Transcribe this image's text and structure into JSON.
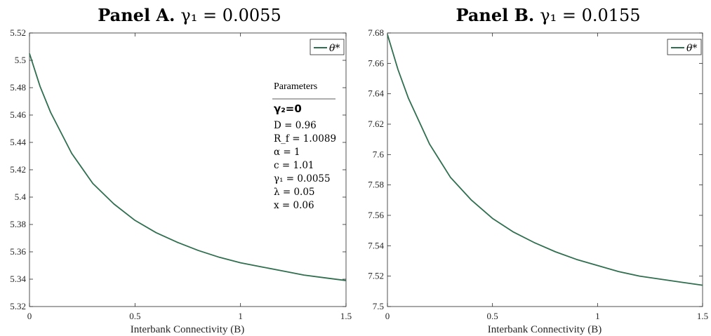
{
  "colors": {
    "line": "#2f6f4f",
    "axis": "#262626"
  },
  "chart_data": [
    {
      "type": "line",
      "panel_id": "A",
      "title_bold": "Panel A.",
      "title_math": "γ₁ = 0.0055",
      "xlabel": "Interbank Connectivity (B)",
      "ylabel": "",
      "xlim": [
        0,
        1.5
      ],
      "ylim": [
        5.32,
        5.52
      ],
      "xticks": [
        0,
        0.5,
        1,
        1.5
      ],
      "xtick_labels": [
        "0",
        "0.5",
        "1",
        "1.5"
      ],
      "yticks": [
        5.32,
        5.34,
        5.36,
        5.38,
        5.4,
        5.42,
        5.44,
        5.46,
        5.48,
        5.5,
        5.52
      ],
      "ytick_labels": [
        "5.32",
        "5.34",
        "5.36",
        "5.38",
        "5.4",
        "5.42",
        "5.44",
        "5.46",
        "5.48",
        "5.5",
        "5.52"
      ],
      "legend": {
        "position": "top-right",
        "label": "θ*"
      },
      "series": [
        {
          "name": "θ*",
          "x": [
            0,
            0.05,
            0.1,
            0.15,
            0.2,
            0.25,
            0.3,
            0.4,
            0.5,
            0.6,
            0.7,
            0.8,
            0.9,
            1.0,
            1.1,
            1.2,
            1.3,
            1.4,
            1.5
          ],
          "y": [
            5.505,
            5.481,
            5.462,
            5.447,
            5.432,
            5.421,
            5.41,
            5.395,
            5.383,
            5.374,
            5.367,
            5.361,
            5.356,
            5.352,
            5.349,
            5.346,
            5.343,
            5.341,
            5.339
          ]
        }
      ],
      "parameters_box": {
        "heading": "Parameters",
        "bold_line": "γ₂=0",
        "lines": [
          "D = 0.96",
          "R_f = 1.0089",
          "α = 1",
          "c = 1.01",
          "γ₁ = 0.0055",
          "λ = 0.05",
          "x = 0.06"
        ]
      }
    },
    {
      "type": "line",
      "panel_id": "B",
      "title_bold": "Panel B.",
      "title_math": "γ₁ = 0.0155",
      "xlabel": "Interbank Connectivity (B)",
      "ylabel": "",
      "xlim": [
        0,
        1.5
      ],
      "ylim": [
        7.5,
        7.68
      ],
      "xticks": [
        0,
        0.5,
        1,
        1.5
      ],
      "xtick_labels": [
        "0",
        "0.5",
        "1",
        "1.5"
      ],
      "yticks": [
        7.5,
        7.52,
        7.54,
        7.56,
        7.58,
        7.6,
        7.62,
        7.64,
        7.66,
        7.68
      ],
      "ytick_labels": [
        "7.5",
        "7.52",
        "7.54",
        "7.56",
        "7.58",
        "7.6",
        "7.62",
        "7.64",
        "7.66",
        "7.68"
      ],
      "legend": {
        "position": "top-right",
        "label": "θ*"
      },
      "series": [
        {
          "name": "θ*",
          "x": [
            0,
            0.05,
            0.1,
            0.15,
            0.2,
            0.25,
            0.3,
            0.4,
            0.5,
            0.6,
            0.7,
            0.8,
            0.9,
            1.0,
            1.1,
            1.2,
            1.3,
            1.4,
            1.5
          ],
          "y": [
            7.679,
            7.656,
            7.637,
            7.622,
            7.607,
            7.596,
            7.585,
            7.57,
            7.558,
            7.549,
            7.542,
            7.536,
            7.531,
            7.527,
            7.523,
            7.52,
            7.518,
            7.516,
            7.514
          ]
        }
      ]
    }
  ]
}
